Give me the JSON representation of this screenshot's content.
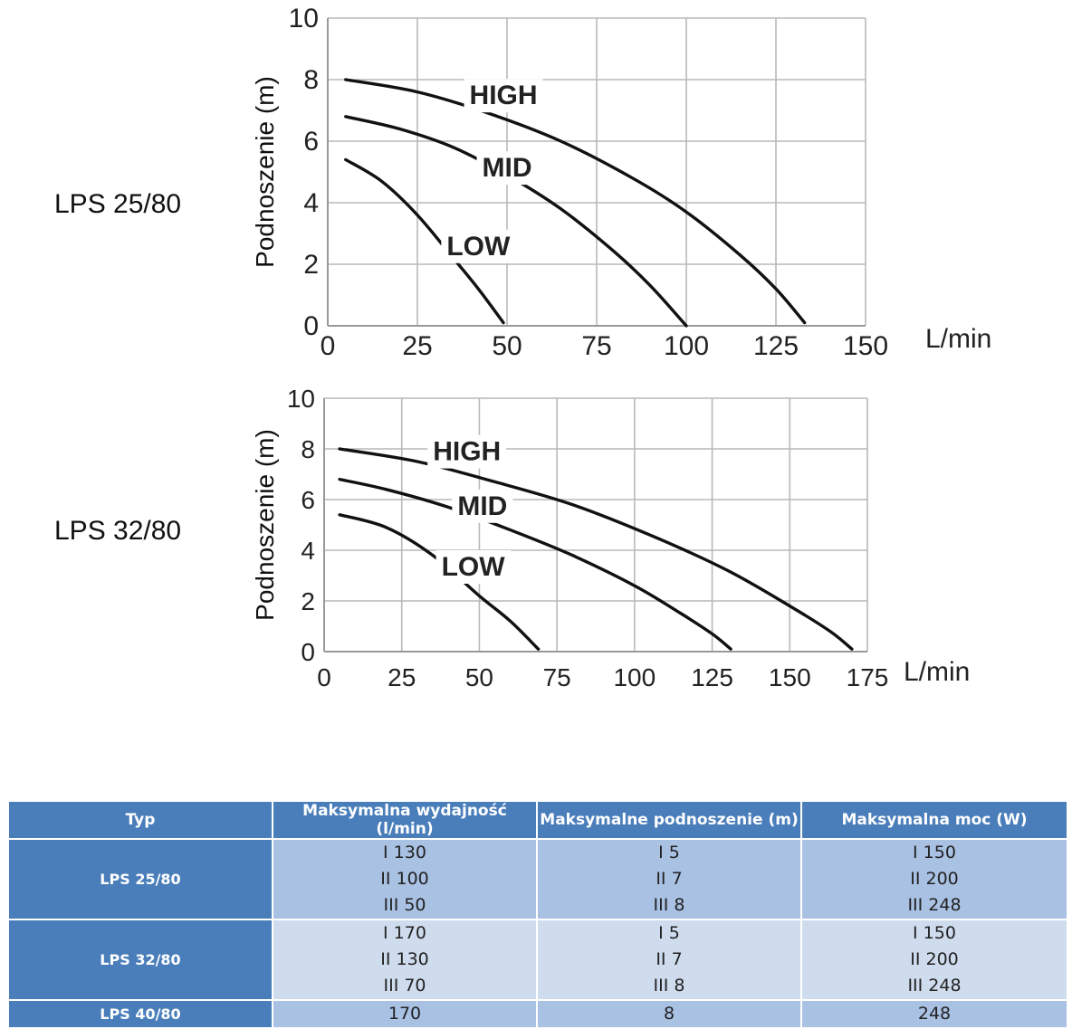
{
  "labels": {
    "model1": "LPS 25/80",
    "model2": "LPS 32/80"
  },
  "chart_data": [
    {
      "type": "line",
      "model": "LPS 25/80",
      "xlabel": "L/min",
      "ylabel": "Podnoszenie (m)",
      "xlim": [
        0,
        150
      ],
      "ylim": [
        0,
        10
      ],
      "xticks": [
        "0",
        "25",
        "50",
        "75",
        "100",
        "125",
        "150"
      ],
      "yticks": [
        "0",
        "2",
        "4",
        "6",
        "8",
        "10"
      ],
      "grid": true,
      "series": [
        {
          "name": "HIGH",
          "x": [
            5,
            25,
            45,
            65,
            85,
            100,
            115,
            125,
            133
          ],
          "y": [
            8.0,
            7.6,
            6.9,
            6.0,
            4.8,
            3.7,
            2.3,
            1.2,
            0.1
          ]
        },
        {
          "name": "MID",
          "x": [
            5,
            20,
            35,
            50,
            65,
            80,
            90,
            100
          ],
          "y": [
            6.8,
            6.4,
            5.8,
            4.9,
            3.8,
            2.4,
            1.3,
            0.0
          ]
        },
        {
          "name": "LOW",
          "x": [
            5,
            15,
            25,
            35,
            42,
            49
          ],
          "y": [
            5.4,
            4.7,
            3.6,
            2.2,
            1.2,
            0.1
          ]
        }
      ],
      "annotations": [
        "HIGH",
        "MID",
        "LOW"
      ]
    },
    {
      "type": "line",
      "model": "LPS 32/80",
      "xlabel": "L/min",
      "ylabel": "Podnoszenie (m)",
      "xlim": [
        0,
        175
      ],
      "ylim": [
        0,
        10
      ],
      "xticks": [
        "0",
        "25",
        "50",
        "75",
        "100",
        "125",
        "150",
        "175"
      ],
      "yticks": [
        "0",
        "2",
        "4",
        "6",
        "8",
        "10"
      ],
      "grid": true,
      "series": [
        {
          "name": "HIGH",
          "x": [
            5,
            30,
            55,
            80,
            105,
            130,
            150,
            163,
            170
          ],
          "y": [
            8.0,
            7.5,
            6.7,
            5.8,
            4.6,
            3.2,
            1.8,
            0.8,
            0.1
          ]
        },
        {
          "name": "MID",
          "x": [
            5,
            20,
            40,
            60,
            80,
            100,
            115,
            125,
            131
          ],
          "y": [
            6.8,
            6.4,
            5.7,
            4.8,
            3.8,
            2.6,
            1.5,
            0.7,
            0.1
          ]
        },
        {
          "name": "LOW",
          "x": [
            5,
            20,
            35,
            50,
            60,
            69
          ],
          "y": [
            5.4,
            4.9,
            3.8,
            2.2,
            1.2,
            0.1
          ]
        }
      ],
      "annotations": [
        "HIGH",
        "MID",
        "LOW"
      ]
    }
  ],
  "table": {
    "headers": [
      "Typ",
      "Maksymalna wydajność (l/min)",
      "Maksymalne podnoszenie (m)",
      "Maksymalna moc (W)"
    ],
    "rows": [
      {
        "typ": "LPS 25/80",
        "flow": [
          "I 130",
          "II 100",
          "III 50"
        ],
        "head": [
          "I 5",
          "II 7",
          "III 8"
        ],
        "power": [
          "I 150",
          "II 200",
          "III 248"
        ]
      },
      {
        "typ": "LPS 32/80",
        "flow": [
          "I 170",
          "II 130",
          "III 70"
        ],
        "head": [
          "I 5",
          "II 7",
          "III 8"
        ],
        "power": [
          "I 150",
          "II 200",
          "III 248"
        ]
      },
      {
        "typ": "LPS 40/80",
        "flow": [
          "170"
        ],
        "head": [
          "8"
        ],
        "power": [
          "248"
        ]
      }
    ]
  }
}
